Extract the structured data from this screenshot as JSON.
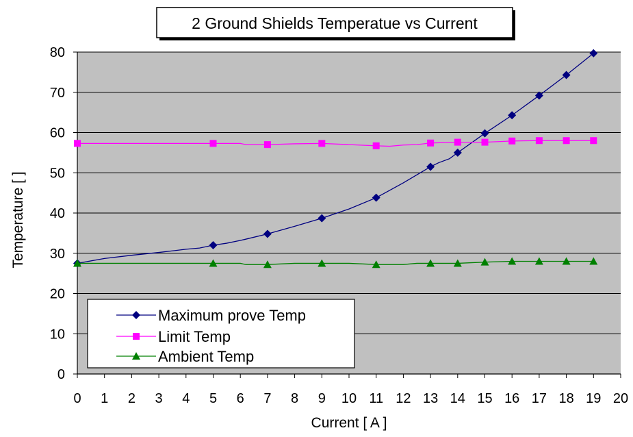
{
  "chart_data": {
    "type": "line",
    "title": "2 Ground Shields Temperatue vs Current",
    "xlabel": "Current [ A ]",
    "ylabel": "Temperature [ ]",
    "xlim": [
      0,
      20
    ],
    "ylim": [
      0,
      80
    ],
    "xticks": [
      0,
      1,
      2,
      3,
      4,
      5,
      6,
      7,
      8,
      9,
      10,
      11,
      12,
      13,
      14,
      15,
      16,
      17,
      18,
      19,
      20
    ],
    "yticks": [
      0,
      10,
      20,
      30,
      40,
      50,
      60,
      70,
      80
    ],
    "grid": "horizontal",
    "legend_position": "bottom-left",
    "plot_background": "#c0c0c0",
    "series": [
      {
        "name": "Maximum prove Temp",
        "color": "#000080",
        "marker": "diamond",
        "line_x": [
          0,
          1,
          2,
          3,
          4,
          4.5,
          5,
          5.5,
          6,
          6.2,
          7,
          8,
          9,
          10,
          11,
          12,
          13,
          13.3,
          13.7,
          14,
          15,
          16,
          17,
          18,
          19
        ],
        "line_y": [
          27.5,
          28.7,
          29.5,
          30.2,
          31,
          31.3,
          32,
          32.5,
          33.2,
          33.5,
          34.8,
          36.7,
          38.7,
          41,
          43.8,
          47.5,
          51.5,
          52.5,
          53.5,
          55,
          59.8,
          64.3,
          69.2,
          74.3,
          79.7
        ],
        "marker_x": [
          0,
          5,
          7,
          9,
          11,
          13,
          14,
          15,
          16,
          17,
          18,
          19
        ],
        "marker_y": [
          27.5,
          32,
          34.8,
          38.7,
          43.8,
          51.5,
          55,
          59.8,
          64.3,
          69.2,
          74.3,
          79.7
        ]
      },
      {
        "name": "Limit Temp",
        "color": "#ff00ff",
        "marker": "square",
        "line_x": [
          0,
          1,
          2,
          3,
          4,
          5,
          6,
          6.2,
          7,
          8,
          9,
          10,
          11,
          11.5,
          12,
          12.5,
          13,
          14,
          15,
          16,
          17,
          18,
          19
        ],
        "line_y": [
          57.3,
          57.3,
          57.3,
          57.3,
          57.3,
          57.3,
          57.3,
          57,
          57,
          57.2,
          57.3,
          57,
          56.7,
          56.6,
          56.9,
          57,
          57.4,
          57.6,
          57.6,
          57.9,
          58,
          58,
          58
        ],
        "marker_x": [
          0,
          5,
          7,
          9,
          11,
          13,
          14,
          15,
          16,
          17,
          18,
          19
        ],
        "marker_y": [
          57.3,
          57.3,
          57,
          57.3,
          56.7,
          57.4,
          57.6,
          57.6,
          57.9,
          58,
          58,
          58
        ]
      },
      {
        "name": "Ambient Temp",
        "color": "#008000",
        "marker": "triangle",
        "line_x": [
          0,
          1,
          2,
          3,
          4,
          5,
          6,
          6.2,
          7,
          8,
          9,
          10,
          11,
          12,
          12.5,
          13,
          14,
          15,
          16,
          17,
          18,
          19
        ],
        "line_y": [
          27.5,
          27.5,
          27.5,
          27.5,
          27.5,
          27.5,
          27.5,
          27.2,
          27.2,
          27.5,
          27.5,
          27.5,
          27.2,
          27.2,
          27.5,
          27.5,
          27.5,
          27.8,
          28,
          28,
          28,
          28
        ],
        "marker_x": [
          0,
          5,
          7,
          9,
          11,
          13,
          14,
          15,
          16,
          17,
          18,
          19
        ],
        "marker_y": [
          27.5,
          27.5,
          27.2,
          27.5,
          27.2,
          27.5,
          27.5,
          27.8,
          28,
          28,
          28,
          28
        ]
      }
    ]
  }
}
